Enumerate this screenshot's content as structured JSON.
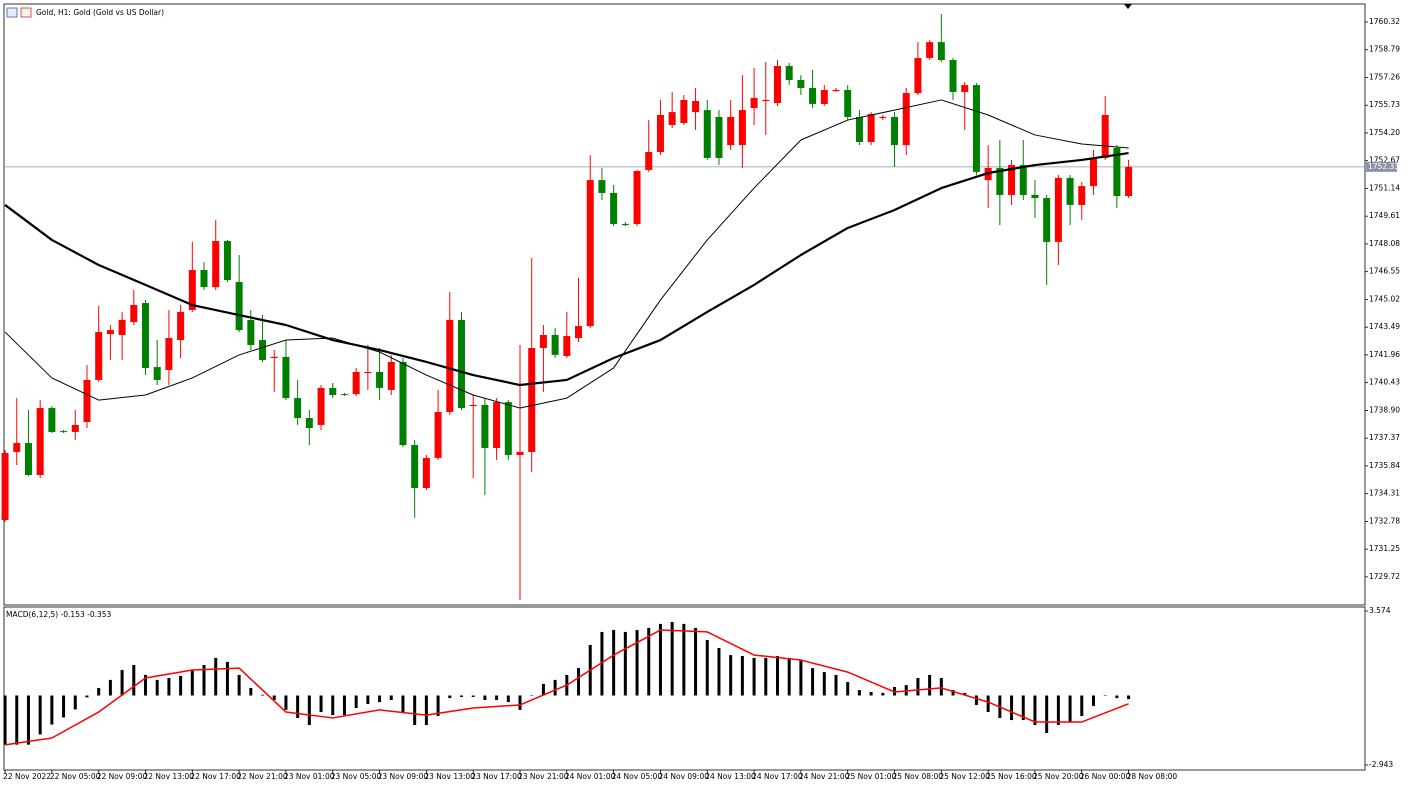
{
  "chart_data": [
    {
      "type": "candlestick",
      "title": "Gold, H1:  Gold (Gold vs US Dollar)",
      "up_color": "#ff0000",
      "down_color": "#008000",
      "grid": false,
      "xlim": [
        -0.09,
        116.2
      ],
      "ylim": [
        1728.17,
        1761.31
      ],
      "yticks": [
        1760.32,
        1758.79,
        1757.26,
        1755.73,
        {
          "value": 1754.2,
          "label": "1754.20"
        },
        1752.67,
        1751.14,
        1749.61,
        1748.08,
        1746.55,
        1745.02,
        1743.49,
        1741.96,
        1740.43,
        {
          "value": 1738.9,
          "label": "1738.90"
        },
        1737.37,
        1735.84,
        1734.31,
        1732.78,
        1731.25,
        1729.72
      ],
      "current_price": 1752.33,
      "open": [
        1732.86,
        1736.61,
        1737.1,
        1735.34,
        1739.03,
        1737.76,
        1737.71,
        1738.26,
        1740.58,
        1743.11,
        1743.06,
        1743.77,
        1744.82,
        1741.29,
        1741.13,
        1742.78,
        1744.44,
        1746.64,
        1745.7,
        1748.24,
        1745.98,
        1743.89,
        1742.78,
        1741.79,
        1741.85,
        1739.58,
        1738.48,
        1738.1,
        1740.14,
        1739.8,
        1739.8,
        1740.96,
        1741.02,
        1740.03,
        1741.57,
        1736.99,
        1734.62,
        1736.28,
        1738.81,
        1743.89,
        1739.14,
        1739.2,
        1736.83,
        1739.36,
        1736.44,
        1736.61,
        1742.34,
        1743.06,
        1741.9,
        1742.89,
        1743.55,
        1751.6,
        1750.89,
        1749.18,
        1749.18,
        1752.16,
        1753.15,
        1754.64,
        1754.75,
        1755.35,
        1755.46,
        1755.08,
        1753.53,
        1753.53,
        1755.57,
        1755.96,
        1755.85,
        1757.89,
        1757.12,
        1756.68,
        1755.8,
        1756.51,
        1756.57,
        1755.08,
        1753.7,
        1755.02,
        1755.08,
        1753.53,
        1756.4,
        1758.33,
        1759.21,
        1758.22,
        1756.46,
        1756.84,
        1751.6,
        1752.27,
        1750.78,
        1752.43,
        1750.78,
        1750.61,
        1748.19,
        1751.72,
        1750.23,
        1751.27,
        1752.82,
        1753.37,
        1750.72
      ],
      "high": [
        1736.72,
        1739.58,
        1738.92,
        1739.47,
        1739.14,
        1737.82,
        1738.92,
        1741.4,
        1744.66,
        1743.61,
        1744.33,
        1745.54,
        1744.99,
        1742.78,
        1744.44,
        1744.71,
        1748.19,
        1747.08,
        1749.4,
        1748.3,
        1747.47,
        1744.44,
        1744.16,
        1742.23,
        1742.78,
        1740.58,
        1738.92,
        1740.3,
        1740.41,
        1739.86,
        1741.24,
        1742.51,
        1742.34,
        1741.96,
        1741.79,
        1737.27,
        1736.44,
        1740.03,
        1745.43,
        1744.33,
        1739.75,
        1739.58,
        1739.58,
        1739.47,
        1742.51,
        1747.3,
        1743.61,
        1743.44,
        1744.33,
        1746.2,
        1752.98,
        1752.27,
        1751.33,
        1749.29,
        1752.16,
        1754.91,
        1756.02,
        1756.46,
        1756.29,
        1756.68,
        1756.02,
        1755.46,
        1756.02,
        1757.39,
        1757.78,
        1758.11,
        1758.22,
        1758.06,
        1757.39,
        1757.67,
        1756.84,
        1756.68,
        1756.84,
        1755.46,
        1755.35,
        1755.19,
        1755.35,
        1756.68,
        1759.21,
        1759.32,
        1760.76,
        1758.33,
        1757.01,
        1756.95,
        1753.53,
        1753.81,
        1752.71,
        1753.81,
        1751.6,
        1750.78,
        1751.88,
        1751.88,
        1751.49,
        1753.26,
        1756.24,
        1753.53,
        1752.71
      ],
      "low": [
        1732.75,
        1735.89,
        1735.28,
        1735.17,
        1737.65,
        1737.65,
        1737.27,
        1737.93,
        1740.47,
        1741.68,
        1741.68,
        1743.61,
        1740.85,
        1740.3,
        1740.3,
        1741.79,
        1744.33,
        1745.54,
        1745.54,
        1745.98,
        1743.22,
        1742.23,
        1741.57,
        1739.92,
        1739.47,
        1738.1,
        1736.99,
        1737.82,
        1739.58,
        1739.69,
        1739.69,
        1740.03,
        1739.47,
        1739.75,
        1736.88,
        1732.97,
        1734.51,
        1736.17,
        1738.65,
        1738.92,
        1735.17,
        1734.24,
        1736.17,
        1736.17,
        1728.45,
        1735.5,
        1739.92,
        1741.79,
        1741.79,
        1742.67,
        1743.44,
        1750.5,
        1749.07,
        1749.07,
        1749.07,
        1752.05,
        1752.98,
        1754.47,
        1754.64,
        1754.36,
        1752.71,
        1752.43,
        1753.26,
        1752.27,
        1754.64,
        1754.09,
        1755.69,
        1756.84,
        1756.29,
        1755.57,
        1755.69,
        1756.46,
        1754.91,
        1753.53,
        1753.53,
        1754.91,
        1752.32,
        1752.98,
        1756.29,
        1758.22,
        1758.11,
        1756.02,
        1754.36,
        1751.88,
        1750.06,
        1749.12,
        1750.23,
        1750.5,
        1749.51,
        1745.82,
        1746.92,
        1749.12,
        1749.4,
        1750.78,
        1752.71,
        1750.06,
        1750.61
      ],
      "close": [
        1736.55,
        1737.1,
        1735.34,
        1739.03,
        1737.71,
        1737.71,
        1738.1,
        1740.58,
        1743.22,
        1743.33,
        1743.89,
        1744.71,
        1741.24,
        1740.58,
        1742.89,
        1744.33,
        1746.64,
        1745.7,
        1748.24,
        1746.09,
        1743.33,
        1742.51,
        1741.68,
        1741.85,
        1739.58,
        1738.48,
        1737.93,
        1740.14,
        1739.75,
        1739.75,
        1741.02,
        1741.02,
        1740.14,
        1741.57,
        1736.99,
        1734.62,
        1736.28,
        1738.81,
        1743.89,
        1739.03,
        1739.2,
        1736.83,
        1739.36,
        1736.44,
        1736.61,
        1742.34,
        1743.06,
        1741.96,
        1743.0,
        1743.55,
        1751.6,
        1750.89,
        1749.18,
        1749.12,
        1752.1,
        1753.15,
        1755.19,
        1755.35,
        1756.02,
        1755.96,
        1752.82,
        1752.82,
        1755.08,
        1755.46,
        1756.13,
        1756.02,
        1757.89,
        1757.12,
        1756.68,
        1755.8,
        1756.57,
        1756.57,
        1755.08,
        1753.7,
        1755.24,
        1755.08,
        1753.53,
        1756.4,
        1758.33,
        1759.21,
        1758.22,
        1756.46,
        1756.84,
        1752.05,
        1752.27,
        1750.78,
        1752.43,
        1750.78,
        1750.61,
        1748.19,
        1751.72,
        1750.23,
        1751.27,
        1752.82,
        1755.19,
        1750.72,
        1752.33
      ],
      "lines": [
        {
          "color": "#000000",
          "width": 1,
          "x": [
            0,
            4,
            8,
            12,
            16,
            20,
            24,
            28,
            32,
            36,
            40,
            44,
            48,
            52,
            56,
            60,
            64,
            68,
            72,
            76,
            80,
            84,
            88,
            92,
            96
          ],
          "values": [
            1743.22,
            1740.69,
            1739.47,
            1739.75,
            1740.69,
            1741.96,
            1742.78,
            1742.89,
            1742.12,
            1740.85,
            1739.75,
            1739.03,
            1739.58,
            1741.24,
            1744.99,
            1748.3,
            1751.16,
            1753.81,
            1754.91,
            1755.46,
            1756.02,
            1755.19,
            1754.09,
            1753.59,
            1753.37
          ]
        },
        {
          "color": "#000000",
          "width": 2.2,
          "x": [
            0,
            4,
            8,
            12,
            16,
            20,
            24,
            28,
            32,
            36,
            40,
            44,
            48,
            52,
            56,
            60,
            64,
            68,
            72,
            76,
            80,
            84,
            88,
            92,
            96
          ],
          "values": [
            1750.23,
            1748.3,
            1746.92,
            1745.82,
            1744.71,
            1744.16,
            1743.61,
            1742.78,
            1742.23,
            1741.57,
            1740.85,
            1740.3,
            1740.58,
            1741.79,
            1742.78,
            1744.33,
            1745.82,
            1747.47,
            1748.96,
            1749.95,
            1751.16,
            1751.99,
            1752.43,
            1752.71,
            1753.09
          ]
        }
      ]
    },
    {
      "type": "macd",
      "title": "MACD(6,12,5) -0.153 -0.353",
      "xlim": [
        -0.09,
        116.2
      ],
      "ylim": [
        -3.153,
        3.745
      ],
      "yticks": [
        3.574,
        -2.943
      ],
      "histogram_color": "#000000",
      "histogram": [
        -2.08,
        -2.08,
        -2.08,
        -1.65,
        -1.23,
        -0.93,
        -0.59,
        -0.08,
        0.32,
        0.66,
        1.08,
        1.29,
        0.87,
        0.66,
        0.74,
        0.83,
        1.08,
        1.29,
        1.59,
        1.42,
        0.87,
        0.32,
        0.03,
        -0.19,
        -0.61,
        -0.95,
        -1.25,
        -0.7,
        -0.83,
        -0.83,
        -0.53,
        -0.36,
        -0.28,
        -0.19,
        -0.7,
        -1.25,
        -1.25,
        -0.87,
        -0.11,
        -0.06,
        -0.06,
        -0.19,
        -0.19,
        -0.28,
        -0.61,
        0.02,
        0.49,
        0.66,
        0.87,
        1.16,
        2.14,
        2.69,
        2.77,
        2.69,
        2.77,
        2.86,
        3.03,
        3.11,
        3.03,
        2.86,
        2.35,
        2.01,
        1.71,
        1.67,
        1.59,
        1.59,
        1.67,
        1.59,
        1.5,
        1.16,
        0.99,
        0.87,
        0.57,
        0.23,
        0.15,
        0.11,
        0.36,
        0.44,
        0.74,
        0.87,
        0.74,
        0.23,
        0.11,
        -0.4,
        -0.7,
        -0.95,
        -1.04,
        -1.04,
        -1.25,
        -1.59,
        -1.25,
        -1.12,
        -0.87,
        -0.44,
        -0.02,
        -0.11,
        -0.153
      ],
      "signal": {
        "color": "#ff0000",
        "x": [
          0,
          4,
          8,
          12,
          16,
          20,
          24,
          28,
          32,
          36,
          40,
          44,
          48,
          52,
          56,
          60,
          64,
          68,
          72,
          76,
          80,
          84,
          88,
          92,
          96
        ],
        "values": [
          -2.09,
          -1.8,
          -0.7,
          0.74,
          1.08,
          1.16,
          -0.7,
          -0.95,
          -0.61,
          -0.83,
          -0.53,
          -0.4,
          0.44,
          1.71,
          2.77,
          2.69,
          1.71,
          1.5,
          0.99,
          0.15,
          0.32,
          -0.28,
          -1.12,
          -1.12,
          -0.353
        ]
      },
      "xticks": [
        {
          "value": 0,
          "label": "22 Nov 2022"
        },
        {
          "value": 4,
          "label": "22 Nov 05:00"
        },
        {
          "value": 8,
          "label": "22 Nov 09:00"
        },
        {
          "value": 12,
          "label": "22 Nov 13:00"
        },
        {
          "value": 16,
          "label": "22 Nov 17:00"
        },
        {
          "value": 20,
          "label": "22 Nov 21:00"
        },
        {
          "value": 24,
          "label": "23 Nov 01:00"
        },
        {
          "value": 28,
          "label": "23 Nov 05:00"
        },
        {
          "value": 32,
          "label": "23 Nov 09:00"
        },
        {
          "value": 36,
          "label": "23 Nov 13:00"
        },
        {
          "value": 40,
          "label": "23 Nov 17:00"
        },
        {
          "value": 44,
          "label": "23 Nov 21:00"
        },
        {
          "value": 48,
          "label": "24 Nov 01:00"
        },
        {
          "value": 52,
          "label": "24 Nov 05:00"
        },
        {
          "value": 56,
          "label": "24 Nov 09:00"
        },
        {
          "value": 60,
          "label": "24 Nov 13:00"
        },
        {
          "value": 64,
          "label": "24 Nov 17:00"
        },
        {
          "value": 68,
          "label": "24 Nov 21:00"
        },
        {
          "value": 72,
          "label": "25 Nov 01:00"
        },
        {
          "value": 76,
          "label": "25 Nov 08:00"
        },
        {
          "value": 80,
          "label": "25 Nov 12:00"
        },
        {
          "value": 84,
          "label": "25 Nov 16:00"
        },
        {
          "value": 88,
          "label": "25 Nov 20:00"
        },
        {
          "value": 92,
          "label": "26 Nov 00:00"
        },
        {
          "value": 96,
          "label": "28 Nov 08:00"
        }
      ]
    }
  ]
}
